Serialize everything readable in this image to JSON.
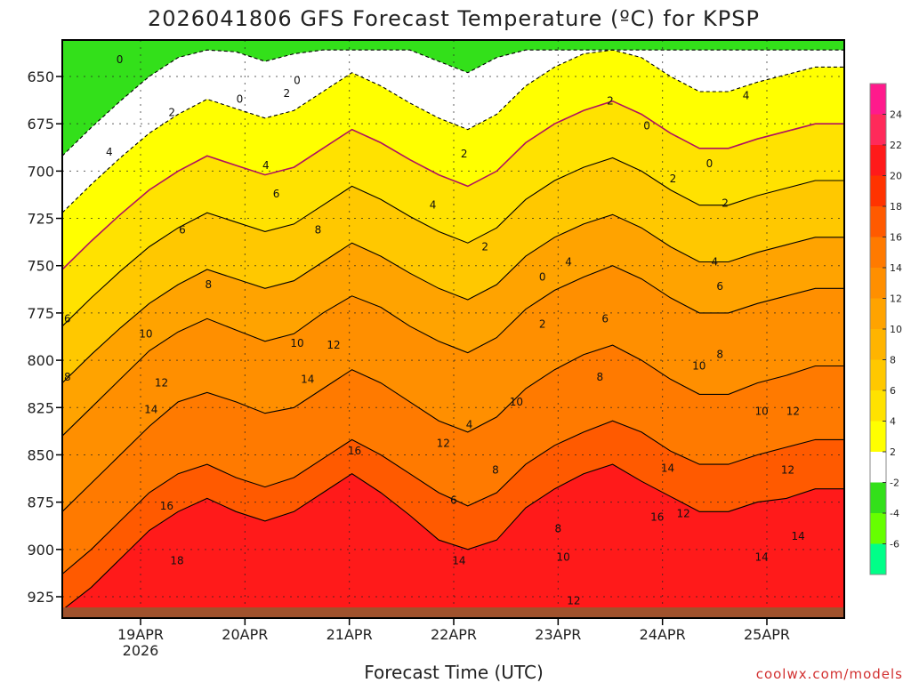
{
  "chart_data": {
    "type": "heatmap",
    "title": "2026041806 GFS Forecast Temperature (ºC) for KPSP",
    "xlabel": "Forecast Time (UTC)",
    "credit": "coolwx.com/models",
    "y_axis": {
      "range": [
        636,
        935
      ],
      "ticks": [
        650,
        675,
        700,
        725,
        750,
        775,
        800,
        825,
        850,
        875,
        900,
        925
      ]
    },
    "x_axis": {
      "range_days": [
        18.25,
        25.75
      ],
      "ticks": [
        {
          "day": 19,
          "label": "19APR",
          "sublabel": "2026"
        },
        {
          "day": 20,
          "label": "20APR",
          "sublabel": ""
        },
        {
          "day": 21,
          "label": "21APR",
          "sublabel": ""
        },
        {
          "day": 22,
          "label": "22APR",
          "sublabel": ""
        },
        {
          "day": 23,
          "label": "23APR",
          "sublabel": ""
        },
        {
          "day": 24,
          "label": "24APR",
          "sublabel": ""
        },
        {
          "day": 25,
          "label": "25APR",
          "sublabel": ""
        }
      ]
    },
    "colorbar": {
      "labels": [
        "24",
        "22",
        "20",
        "18",
        "16",
        "14",
        "12",
        "10",
        "8",
        "6",
        "4",
        "2",
        "-2",
        "-4",
        "-6"
      ],
      "colors": [
        "#ff1a8c",
        "#ff2a5a",
        "#ff1a1a",
        "#ff3300",
        "#ff5a00",
        "#ff7a00",
        "#ff8f00",
        "#ffa300",
        "#ffb400",
        "#ffc800",
        "#ffe200",
        "#ffff00",
        "#ffffff",
        "#33e01a",
        "#66ff00",
        "#00ff88"
      ]
    },
    "temperature_levels_C": [
      {
        "level": 12,
        "pressure": [
          932,
          920,
          905,
          890,
          880,
          873,
          880,
          885,
          880,
          870,
          860,
          870,
          882,
          895,
          900,
          895,
          878,
          868,
          860,
          855,
          864,
          872,
          880,
          880,
          875,
          873,
          868,
          868
        ]
      },
      {
        "level": 10,
        "pressure": [
          913,
          900,
          885,
          870,
          860,
          855,
          862,
          867,
          862,
          852,
          842,
          850,
          860,
          870,
          877,
          870,
          855,
          845,
          838,
          832,
          838,
          848,
          855,
          855,
          850,
          846,
          842,
          842
        ]
      },
      {
        "level": 8,
        "pressure": [
          880,
          865,
          850,
          835,
          822,
          817,
          822,
          828,
          825,
          815,
          805,
          812,
          822,
          832,
          838,
          830,
          815,
          805,
          797,
          792,
          800,
          810,
          818,
          818,
          812,
          808,
          803,
          803
        ]
      },
      {
        "level": 6,
        "pressure": [
          840,
          825,
          810,
          795,
          785,
          778,
          784,
          790,
          786,
          775,
          766,
          772,
          782,
          790,
          796,
          788,
          773,
          763,
          756,
          750,
          757,
          767,
          775,
          775,
          770,
          766,
          762,
          762
        ]
      },
      {
        "level": 4,
        "pressure": [
          812,
          797,
          783,
          770,
          760,
          752,
          757,
          762,
          758,
          748,
          738,
          745,
          754,
          762,
          768,
          760,
          745,
          735,
          728,
          723,
          730,
          740,
          748,
          748,
          743,
          739,
          735,
          735
        ]
      },
      {
        "level": 2,
        "pressure": [
          782,
          767,
          753,
          740,
          730,
          722,
          727,
          732,
          728,
          718,
          708,
          715,
          724,
          732,
          738,
          730,
          715,
          705,
          698,
          693,
          700,
          710,
          718,
          718,
          713,
          709,
          705,
          705
        ]
      },
      {
        "level": 0,
        "pressure": [
          752,
          737,
          723,
          710,
          700,
          692,
          697,
          702,
          698,
          688,
          678,
          685,
          694,
          702,
          708,
          700,
          685,
          675,
          668,
          663,
          670,
          680,
          688,
          688,
          683,
          679,
          675,
          675
        ]
      },
      {
        "level": -2,
        "pressure": [
          722,
          707,
          693,
          680,
          670,
          662,
          667,
          672,
          668,
          658,
          648,
          655,
          664,
          672,
          678,
          670,
          655,
          645,
          638,
          636,
          640,
          650,
          658,
          658,
          653,
          649,
          645,
          645
        ]
      },
      {
        "level": -4,
        "pressure": [
          692,
          677,
          663,
          650,
          640,
          636,
          637,
          642,
          638,
          636,
          636,
          636,
          636,
          642,
          648,
          640,
          636,
          636,
          636,
          636,
          636,
          636,
          636,
          636,
          636,
          636,
          636,
          636
        ]
      }
    ],
    "contour_labels": [
      {
        "text": "0",
        "day": 18.8,
        "p": 641
      },
      {
        "text": "0",
        "day": 19.95,
        "p": 662
      },
      {
        "text": "0",
        "day": 20.5,
        "p": 652
      },
      {
        "text": "0",
        "day": 23.85,
        "p": 676
      },
      {
        "text": "0",
        "day": 24.45,
        "p": 696
      },
      {
        "text": "0",
        "day": 22.85,
        "p": 756
      },
      {
        "text": "2",
        "day": 19.3,
        "p": 669
      },
      {
        "text": "2",
        "day": 20.4,
        "p": 659
      },
      {
        "text": "2",
        "day": 22.1,
        "p": 691
      },
      {
        "text": "2",
        "day": 24.1,
        "p": 704
      },
      {
        "text": "2",
        "day": 24.6,
        "p": 717
      },
      {
        "text": "2",
        "day": 22.3,
        "p": 740
      },
      {
        "text": "2",
        "day": 22.85,
        "p": 781
      },
      {
        "text": "2",
        "day": 23.5,
        "p": 663
      },
      {
        "text": "4",
        "day": 18.7,
        "p": 690
      },
      {
        "text": "4",
        "day": 20.2,
        "p": 697
      },
      {
        "text": "4",
        "day": 21.8,
        "p": 718
      },
      {
        "text": "4",
        "day": 23.1,
        "p": 748
      },
      {
        "text": "4",
        "day": 24.5,
        "p": 748
      },
      {
        "text": "4",
        "day": 22.15,
        "p": 834
      },
      {
        "text": "4",
        "day": 24.8,
        "p": 660
      },
      {
        "text": "6",
        "day": 18.3,
        "p": 778
      },
      {
        "text": "6",
        "day": 19.4,
        "p": 731
      },
      {
        "text": "6",
        "day": 20.3,
        "p": 712
      },
      {
        "text": "6",
        "day": 22.0,
        "p": 874
      },
      {
        "text": "6",
        "day": 23.45,
        "p": 778
      },
      {
        "text": "6",
        "day": 24.55,
        "p": 761
      },
      {
        "text": "8",
        "day": 18.3,
        "p": 809
      },
      {
        "text": "8",
        "day": 19.65,
        "p": 760
      },
      {
        "text": "8",
        "day": 20.7,
        "p": 731
      },
      {
        "text": "8",
        "day": 22.4,
        "p": 858
      },
      {
        "text": "8",
        "day": 23.4,
        "p": 809
      },
      {
        "text": "8",
        "day": 24.55,
        "p": 797
      },
      {
        "text": "8",
        "day": 23.0,
        "p": 889
      },
      {
        "text": "10",
        "day": 19.05,
        "p": 786
      },
      {
        "text": "10",
        "day": 20.5,
        "p": 791
      },
      {
        "text": "10",
        "day": 22.6,
        "p": 822
      },
      {
        "text": "10",
        "day": 23.05,
        "p": 904
      },
      {
        "text": "10",
        "day": 24.35,
        "p": 803
      },
      {
        "text": "10",
        "day": 24.95,
        "p": 827
      },
      {
        "text": "12",
        "day": 19.2,
        "p": 812
      },
      {
        "text": "12",
        "day": 20.85,
        "p": 792
      },
      {
        "text": "12",
        "day": 21.9,
        "p": 844
      },
      {
        "text": "12",
        "day": 23.15,
        "p": 927
      },
      {
        "text": "12",
        "day": 24.2,
        "p": 881
      },
      {
        "text": "12",
        "day": 25.25,
        "p": 827
      },
      {
        "text": "12",
        "day": 25.2,
        "p": 858
      },
      {
        "text": "14",
        "day": 19.1,
        "p": 826
      },
      {
        "text": "14",
        "day": 20.6,
        "p": 810
      },
      {
        "text": "14",
        "day": 22.05,
        "p": 906
      },
      {
        "text": "14",
        "day": 24.05,
        "p": 857
      },
      {
        "text": "14",
        "day": 24.95,
        "p": 904
      },
      {
        "text": "14",
        "day": 25.3,
        "p": 893
      },
      {
        "text": "16",
        "day": 19.25,
        "p": 877
      },
      {
        "text": "16",
        "day": 21.05,
        "p": 848
      },
      {
        "text": "16",
        "day": 23.95,
        "p": 883
      },
      {
        "text": "18",
        "day": 19.35,
        "p": 906
      }
    ]
  }
}
